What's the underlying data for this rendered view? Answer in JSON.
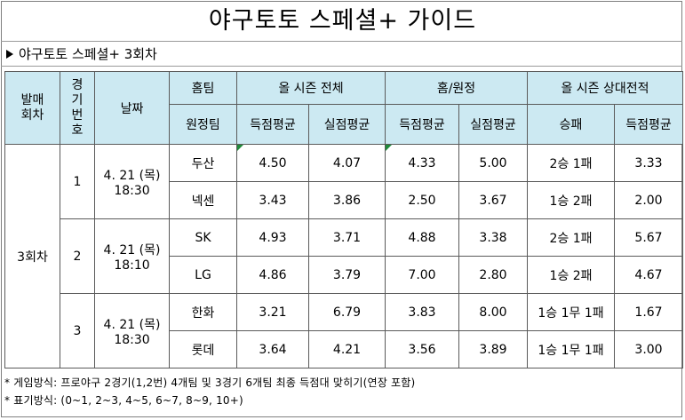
{
  "title": "야구토토 스페셜+ 가이드",
  "subtitle": "야구토토 스페셜+ 3회차",
  "headers": {
    "round": [
      "발매",
      "회차"
    ],
    "game_no": [
      "경",
      "기",
      "번",
      "호"
    ],
    "date": "날짜",
    "home_team": "홈팀",
    "away_team": "원정팀",
    "season_total": "올 시즌 전체",
    "home_away": "홈/원정",
    "head_to_head": "올 시즌 상대전적",
    "avg_scored": "득점평균",
    "avg_allowed": "실점평균",
    "win_loss": "승패"
  },
  "round_label": "3회차",
  "games": [
    {
      "no": "1",
      "date": "4. 21 (목)",
      "time": "18:30",
      "teams": [
        {
          "name": "두산",
          "season_scored": "4.50",
          "season_allowed": "4.07",
          "ha_scored": "4.33",
          "ha_allowed": "5.00",
          "record": "2승 1패",
          "h2h_scored": "3.33"
        },
        {
          "name": "넥센",
          "season_scored": "3.43",
          "season_allowed": "3.86",
          "ha_scored": "2.50",
          "ha_allowed": "3.67",
          "record": "1승 2패",
          "h2h_scored": "2.00"
        }
      ]
    },
    {
      "no": "2",
      "date": "4. 21 (목)",
      "time": "18:10",
      "teams": [
        {
          "name": "SK",
          "season_scored": "4.93",
          "season_allowed": "3.71",
          "ha_scored": "4.88",
          "ha_allowed": "3.38",
          "record": "2승 1패",
          "h2h_scored": "5.67"
        },
        {
          "name": "LG",
          "season_scored": "4.86",
          "season_allowed": "3.79",
          "ha_scored": "7.00",
          "ha_allowed": "2.80",
          "record": "1승 2패",
          "h2h_scored": "4.67"
        }
      ]
    },
    {
      "no": "3",
      "date": "4. 21 (목)",
      "time": "18:30",
      "teams": [
        {
          "name": "한화",
          "season_scored": "3.21",
          "season_allowed": "6.79",
          "ha_scored": "3.83",
          "ha_allowed": "8.00",
          "record": "1승 1무 1패",
          "h2h_scored": "1.67"
        },
        {
          "name": "롯데",
          "season_scored": "3.64",
          "season_allowed": "4.21",
          "ha_scored": "3.56",
          "ha_allowed": "3.89",
          "record": "1승 1무 1패",
          "h2h_scored": "3.00"
        }
      ]
    }
  ],
  "notes": [
    "* 게임방식: 프로야구 2경기(1,2번) 4개팀 및 3경기 6개팀 최종 득점대 맞히기(연장 포함)",
    "* 표기방식: (0~1, 2~3, 4~5, 6~7, 8~9, 10+)"
  ],
  "colors": {
    "header_bg": "#cce9f2",
    "tick": "#1f8a3a",
    "border": "#5a5a5a"
  }
}
